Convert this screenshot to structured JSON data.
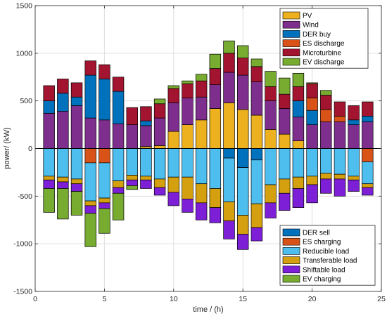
{
  "chart_data": {
    "type": "bar",
    "stacked": true,
    "xlabel": "time / (h)",
    "ylabel": "power/ (kW)",
    "xlim": [
      0,
      25
    ],
    "ylim": [
      -1500,
      1500
    ],
    "xticks": [
      "0",
      "5",
      "10",
      "15",
      "20",
      "25"
    ],
    "yticks": [
      "-1500",
      "-1000",
      "-500",
      "0",
      "500",
      "1000",
      "1500"
    ],
    "grid": true,
    "categories": [
      1,
      2,
      3,
      4,
      5,
      6,
      7,
      8,
      9,
      10,
      11,
      12,
      13,
      14,
      15,
      16,
      17,
      18,
      19,
      20,
      21,
      22,
      23,
      24
    ],
    "positive_legend": "top-right",
    "negative_legend": "bottom-right",
    "positive_series": [
      {
        "name": "PV",
        "color": "#EDB120",
        "values": [
          0,
          0,
          0,
          0,
          0,
          0,
          0,
          20,
          30,
          180,
          250,
          300,
          420,
          480,
          410,
          350,
          200,
          150,
          80,
          0,
          0,
          0,
          0,
          0
        ]
      },
      {
        "name": "Wind",
        "color": "#7E2F8E",
        "values": [
          370,
          390,
          450,
          320,
          300,
          260,
          250,
          220,
          290,
          300,
          280,
          240,
          250,
          320,
          360,
          350,
          300,
          270,
          250,
          250,
          280,
          280,
          250,
          280
        ]
      },
      {
        "name": "DER buy",
        "color": "#0072BD",
        "values": [
          130,
          190,
          90,
          450,
          430,
          340,
          0,
          50,
          0,
          0,
          0,
          0,
          0,
          0,
          0,
          0,
          0,
          0,
          170,
          150,
          0,
          0,
          50,
          60
        ]
      },
      {
        "name": "ES discharge",
        "color": "#D95319",
        "values": [
          0,
          0,
          0,
          0,
          0,
          0,
          0,
          0,
          0,
          0,
          0,
          0,
          0,
          0,
          0,
          0,
          0,
          0,
          0,
          130,
          130,
          60,
          0,
          0
        ]
      },
      {
        "name": "Microturbine",
        "color": "#A2142F",
        "values": [
          160,
          150,
          150,
          150,
          150,
          150,
          180,
          150,
          150,
          150,
          150,
          170,
          170,
          200,
          180,
          160,
          150,
          150,
          150,
          150,
          150,
          150,
          150,
          150
        ]
      },
      {
        "name": "EV discharge",
        "color": "#77AC30",
        "values": [
          0,
          0,
          0,
          0,
          0,
          0,
          0,
          0,
          50,
          30,
          30,
          70,
          150,
          130,
          130,
          80,
          160,
          170,
          140,
          10,
          50,
          0,
          0,
          0
        ]
      }
    ],
    "negative_series": [
      {
        "name": "DER sell",
        "color": "#0072BD",
        "values": [
          0,
          0,
          0,
          0,
          0,
          0,
          0,
          0,
          0,
          0,
          0,
          0,
          0,
          100,
          200,
          120,
          0,
          0,
          0,
          0,
          0,
          0,
          0,
          0
        ]
      },
      {
        "name": "ES charging",
        "color": "#D95319",
        "values": [
          0,
          0,
          0,
          150,
          150,
          0,
          0,
          0,
          0,
          0,
          0,
          0,
          0,
          0,
          0,
          0,
          0,
          0,
          0,
          0,
          0,
          0,
          0,
          140
        ]
      },
      {
        "name": "Reducible load",
        "color": "#4DBEEE",
        "values": [
          290,
          300,
          320,
          400,
          370,
          340,
          280,
          290,
          320,
          300,
          300,
          370,
          420,
          460,
          500,
          460,
          380,
          320,
          300,
          290,
          260,
          270,
          290,
          230
        ]
      },
      {
        "name": "Transferable load",
        "color": "#D4A010",
        "values": [
          40,
          50,
          50,
          50,
          50,
          70,
          50,
          40,
          90,
          160,
          230,
          200,
          200,
          200,
          200,
          250,
          190,
          150,
          120,
          90,
          60,
          50,
          40,
          40
        ]
      },
      {
        "name": "Shiftable load",
        "color": "#7E1FD8",
        "values": [
          90,
          70,
          80,
          80,
          60,
          60,
          60,
          90,
          80,
          140,
          140,
          180,
          160,
          190,
          160,
          140,
          160,
          180,
          200,
          190,
          150,
          180,
          120,
          80
        ]
      },
      {
        "name": "EV charging",
        "color": "#77AC30",
        "values": [
          250,
          320,
          250,
          350,
          260,
          280,
          40,
          0,
          0,
          0,
          0,
          0,
          0,
          0,
          0,
          0,
          0,
          0,
          0,
          0,
          0,
          0,
          0,
          0
        ]
      }
    ]
  }
}
